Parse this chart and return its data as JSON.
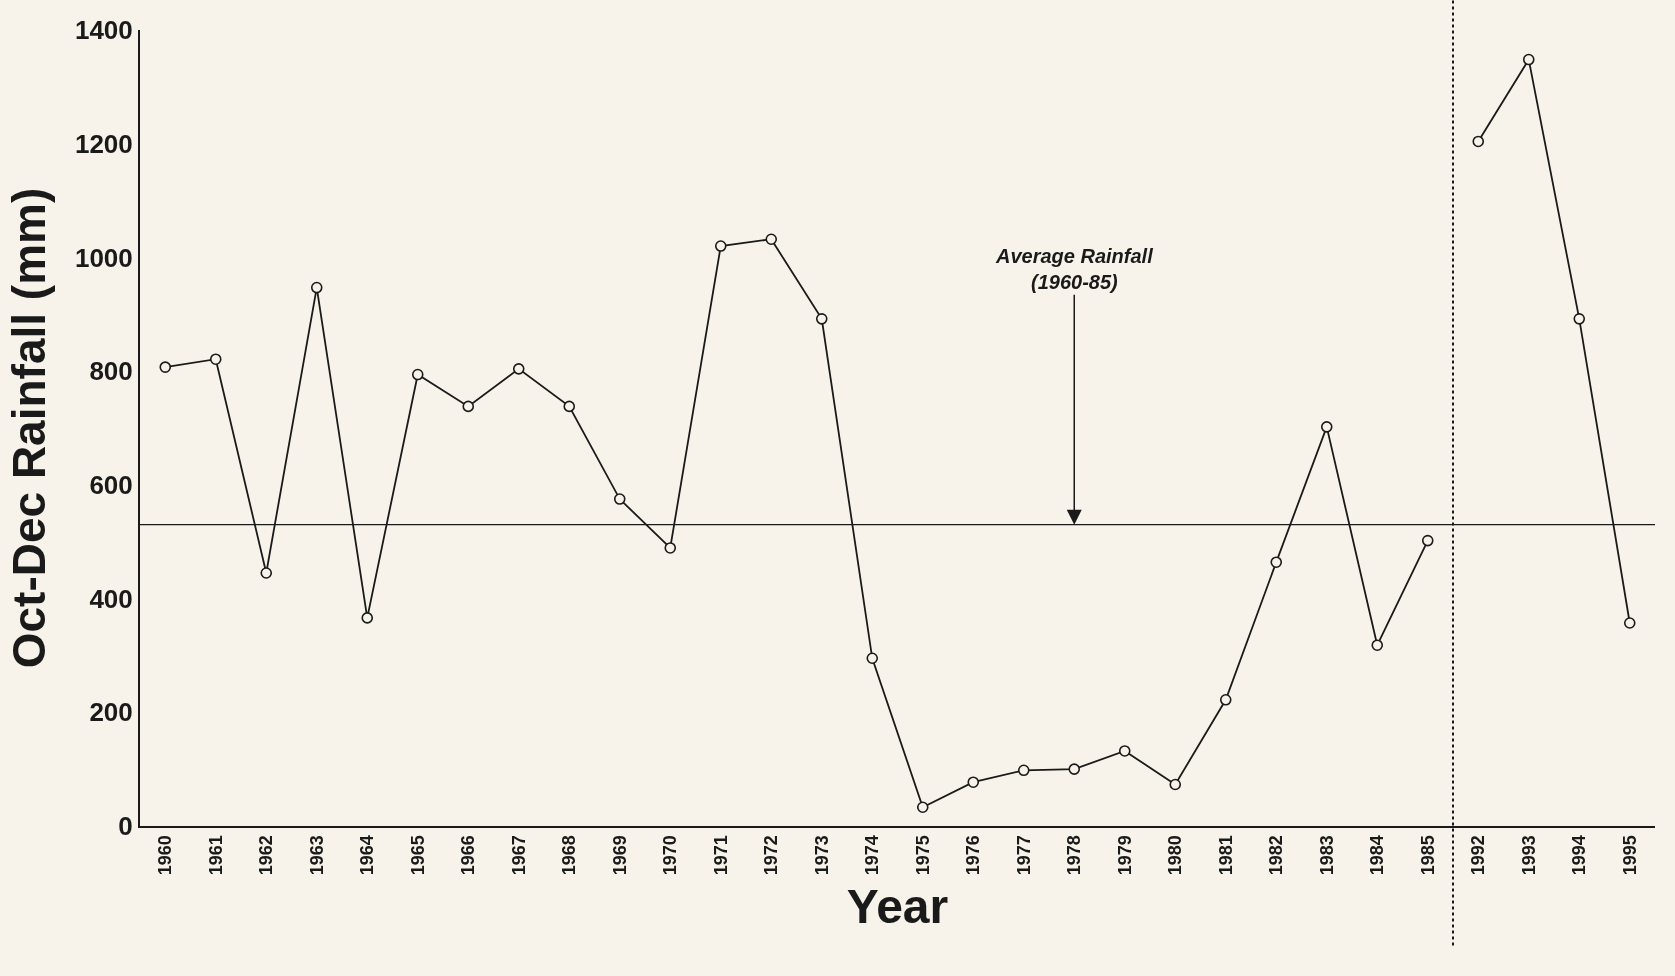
{
  "chart_data": {
    "type": "line",
    "xlabel": "Year",
    "ylabel": "Oct-Dec Rainfall (mm)",
    "categories": [
      "1960",
      "1961",
      "1962",
      "1963",
      "1964",
      "1965",
      "1966",
      "1967",
      "1968",
      "1969",
      "1970",
      "1971",
      "1972",
      "1973",
      "1974",
      "1975",
      "1976",
      "1977",
      "1978",
      "1979",
      "1980",
      "1981",
      "1982",
      "1983",
      "1984",
      "1985",
      "1992",
      "1993",
      "1994",
      "1995"
    ],
    "series": [
      {
        "color": "#1a1a1a",
        "values": [
          807,
          821,
          445,
          947,
          366,
          794,
          738,
          804,
          738,
          575,
          489,
          1020,
          1032,
          892,
          295,
          33,
          77,
          98,
          100,
          132,
          73,
          222,
          464,
          702,
          318,
          502,
          null,
          null,
          null,
          null
        ]
      },
      {
        "color": "#1a1a1a",
        "values": [
          null,
          null,
          null,
          null,
          null,
          null,
          null,
          null,
          null,
          null,
          null,
          null,
          null,
          null,
          null,
          null,
          null,
          null,
          null,
          null,
          null,
          null,
          null,
          null,
          null,
          null,
          1204,
          1348,
          892,
          357
        ]
      }
    ],
    "ylim": [
      0,
      1400
    ],
    "yticks": [
      0,
      200,
      400,
      600,
      800,
      1000,
      1200,
      1400
    ],
    "ref_lines": [
      {
        "axis": "y",
        "value": 530,
        "label": "Average Rainfall\n(1960-85)",
        "color": "#1a1a1a",
        "line_style": "solid"
      }
    ],
    "marker": "circle",
    "line_style": "solid",
    "grid": false
  }
}
